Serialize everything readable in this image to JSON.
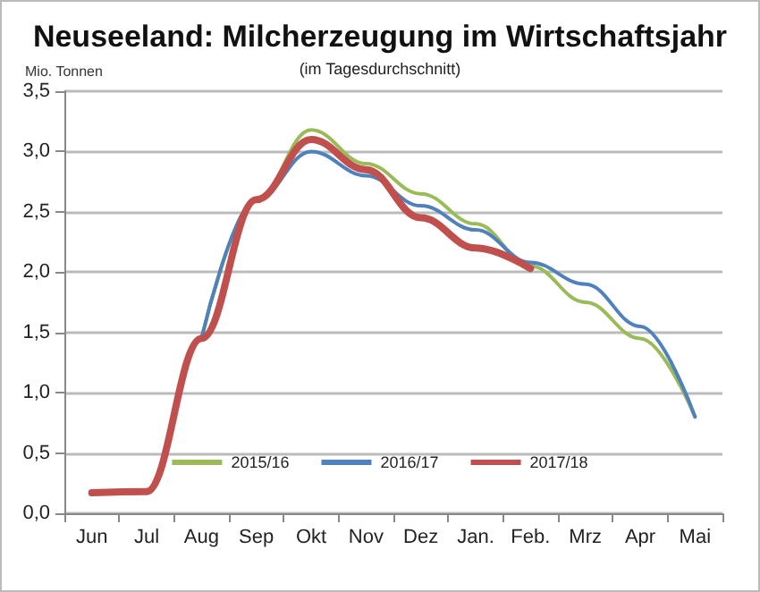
{
  "chart_data": {
    "type": "line",
    "title": "Neuseeland: Milcherzeugung im Wirtschaftsjahr",
    "subtitle": "(im Tagesdurchschnitt)",
    "ylabel": "Mio. Tonnen",
    "categories": [
      "Jun",
      "Jul",
      "Aug",
      "Sep",
      "Okt",
      "Nov",
      "Dez",
      "Jan.",
      "Feb.",
      "Mrz",
      "Apr",
      "Mai"
    ],
    "series": [
      {
        "name": "2015/16",
        "color": "#9bbb59",
        "values": [
          null,
          null,
          1.45,
          2.6,
          3.18,
          2.9,
          2.65,
          2.4,
          2.05,
          1.75,
          1.45,
          0.8
        ]
      },
      {
        "name": "2016/17",
        "color": "#4f81bd",
        "values": [
          null,
          null,
          1.45,
          2.6,
          3.0,
          2.8,
          2.55,
          2.35,
          2.08,
          1.9,
          1.55,
          0.8
        ]
      },
      {
        "name": "2017/18",
        "color": "#c0504d",
        "values": [
          0.17,
          0.18,
          1.45,
          2.6,
          3.1,
          2.85,
          2.45,
          2.2,
          2.03,
          null,
          null,
          null
        ]
      }
    ],
    "ylim": [
      0,
      3.5
    ],
    "yticks": [
      {
        "value": 0,
        "label": "0,0"
      },
      {
        "value": 0.5,
        "label": "0,5"
      },
      {
        "value": 1,
        "label": "1,0"
      },
      {
        "value": 1.5,
        "label": "1,5"
      },
      {
        "value": 2,
        "label": "2,0"
      },
      {
        "value": 2.5,
        "label": "2,5"
      },
      {
        "value": 3,
        "label": "3,0"
      },
      {
        "value": 3.5,
        "label": "3,5"
      }
    ],
    "grid": "y",
    "legend": "bottom",
    "marker": "none",
    "line_style": "solid"
  }
}
